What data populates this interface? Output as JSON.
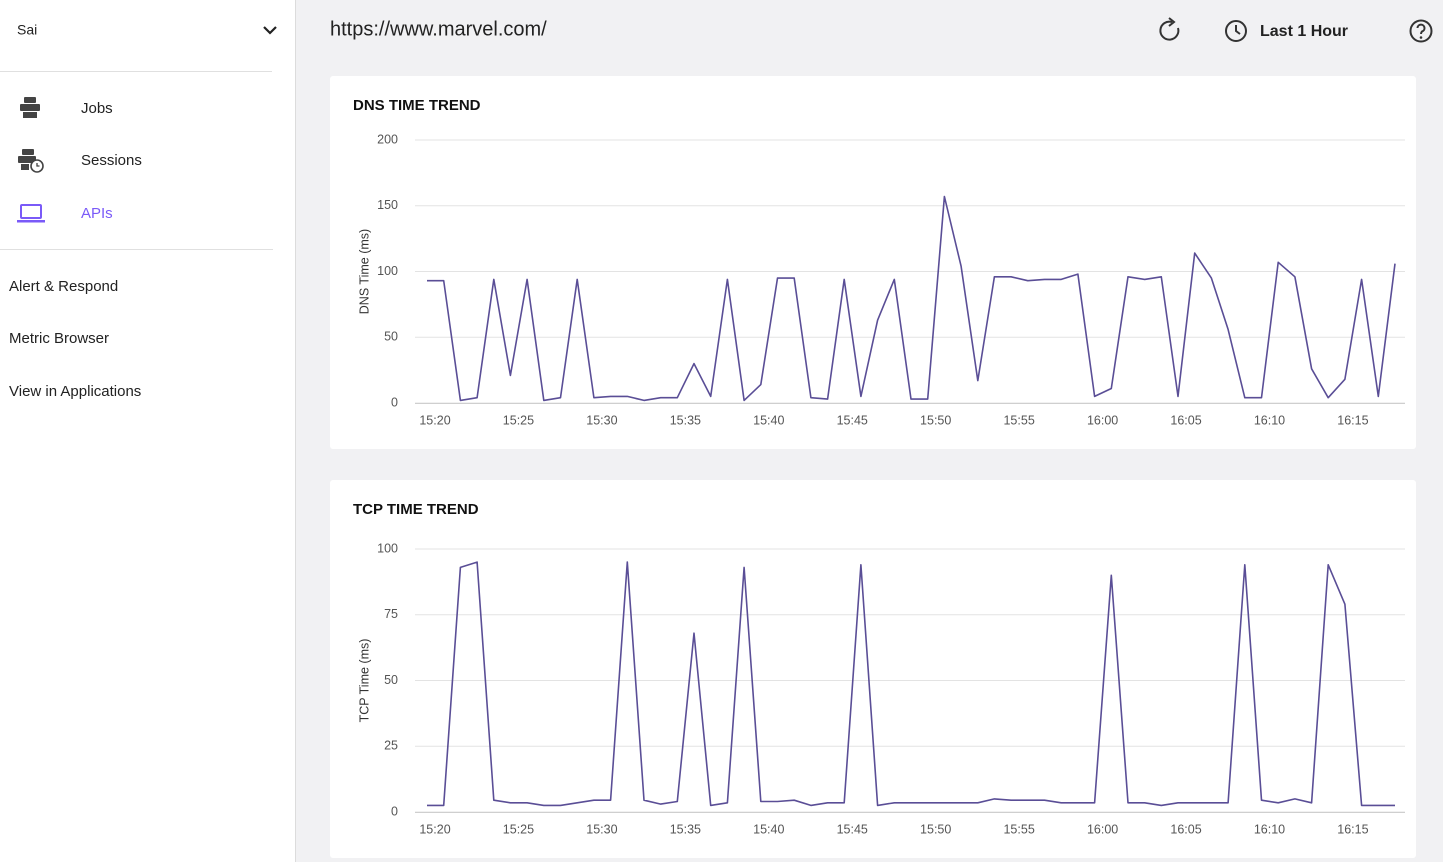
{
  "sidebar": {
    "user": "Sai",
    "nav": [
      "Jobs",
      "Sessions",
      "APIs"
    ],
    "active": "APIs",
    "links": [
      "Alert & Respond",
      "Metric Browser",
      "View in Applications"
    ]
  },
  "header": {
    "url": "https://www.marvel.com/",
    "time_range": "Last 1 Hour"
  },
  "chart_data": [
    {
      "type": "line",
      "title": "DNS TIME TREND",
      "y_label": "DNS Time (ms)",
      "color": "#5a4e96",
      "grid": true,
      "ylim": [
        0,
        200
      ],
      "yticks": [
        0,
        50,
        100,
        150,
        200
      ],
      "categories": [
        "15:20",
        null,
        null,
        null,
        null,
        "15:25",
        null,
        null,
        null,
        null,
        "15:30",
        null,
        null,
        null,
        null,
        "15:35",
        null,
        null,
        null,
        null,
        "15:40",
        null,
        null,
        null,
        null,
        "15:45",
        null,
        null,
        null,
        null,
        "15:50",
        null,
        null,
        null,
        null,
        "15:55",
        null,
        null,
        null,
        null,
        "16:00",
        null,
        null,
        null,
        null,
        "16:05",
        null,
        null,
        null,
        null,
        "16:10",
        null,
        null,
        null,
        null,
        "16:15",
        null,
        null,
        null
      ],
      "values": [
        93,
        93,
        2,
        4,
        94,
        21,
        94,
        2,
        4,
        94,
        4,
        5,
        5,
        2,
        4,
        4,
        30,
        5,
        94,
        2,
        14,
        95,
        95,
        4,
        3,
        94,
        5,
        63,
        94,
        3,
        3,
        157,
        104,
        17,
        96,
        96,
        93,
        94,
        94,
        98,
        5,
        11,
        96,
        94,
        96,
        5,
        114,
        95,
        56,
        4,
        4,
        107,
        96,
        26,
        4,
        18,
        94,
        5,
        106
      ]
    },
    {
      "type": "line",
      "title": "TCP TIME TREND",
      "y_label": "TCP Time (ms)",
      "color": "#5a4e96",
      "grid": true,
      "ylim": [
        0,
        100
      ],
      "yticks": [
        0,
        25,
        50,
        75,
        100
      ],
      "categories": [
        "15:20",
        null,
        null,
        null,
        null,
        "15:25",
        null,
        null,
        null,
        null,
        "15:30",
        null,
        null,
        null,
        null,
        "15:35",
        null,
        null,
        null,
        null,
        "15:40",
        null,
        null,
        null,
        null,
        "15:45",
        null,
        null,
        null,
        null,
        "15:50",
        null,
        null,
        null,
        null,
        "15:55",
        null,
        null,
        null,
        null,
        "16:00",
        null,
        null,
        null,
        null,
        "16:05",
        null,
        null,
        null,
        null,
        "16:10",
        null,
        null,
        null,
        null,
        "16:15",
        null,
        null,
        null
      ],
      "values": [
        2.5,
        2.5,
        93,
        95,
        4.5,
        3.5,
        3.5,
        2.5,
        2.5,
        3.5,
        4.5,
        4.5,
        95,
        4.5,
        3,
        4,
        68,
        2.5,
        3.5,
        93,
        4,
        4,
        4.5,
        2.5,
        3.5,
        3.5,
        94,
        2.5,
        3.5,
        3.5,
        3.5,
        3.5,
        3.5,
        3.5,
        5,
        4.5,
        4.5,
        4.5,
        3.5,
        3.5,
        3.5,
        90,
        3.5,
        3.5,
        2.5,
        3.5,
        3.5,
        3.5,
        3.5,
        94,
        4.5,
        3.5,
        5,
        3.5,
        94,
        79,
        2.5,
        2.5,
        2.5
      ]
    }
  ]
}
